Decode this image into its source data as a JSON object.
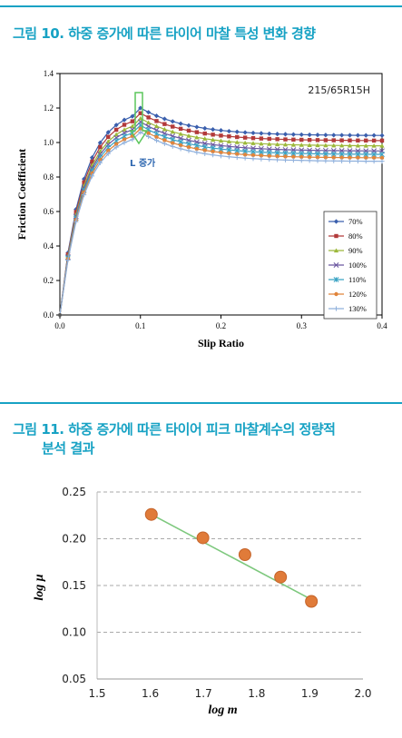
{
  "figure10": {
    "title": "그림 10. 하중 증가에 따른 타이어 마찰 특성 변화 경향"
  },
  "figure11": {
    "title_line1": "그림 11. 하중 증가에 따른 타이어 피크 마찰계수의 정량적",
    "title_line2": "분석 결과"
  },
  "colors": {
    "accent": "#17a2c4",
    "trend_line": "#7dc87d",
    "marker_fill": "#e07b39"
  },
  "chart_data": [
    {
      "type": "line",
      "annotation_tire": "215/65R15H",
      "annotation_arrow": "L 증가",
      "xlabel": "Slip Ratio",
      "ylabel": "Friction Coefficient",
      "xlim": [
        0.0,
        0.4
      ],
      "ylim": [
        0.0,
        1.4
      ],
      "xticks": [
        "0.0",
        "0.1",
        "0.2",
        "0.3",
        "0.4"
      ],
      "yticks": [
        "0.0",
        "0.2",
        "0.4",
        "0.6",
        "0.8",
        "1.0",
        "1.2",
        "1.4"
      ],
      "legend_position": "bottom-right",
      "grid": false,
      "series": [
        {
          "name": "70%",
          "color": "#3a5fad",
          "marker": "diamond",
          "peak": 1.2,
          "end": 1.04
        },
        {
          "name": "80%",
          "color": "#b23a3a",
          "marker": "square",
          "peak": 1.17,
          "end": 1.01
        },
        {
          "name": "90%",
          "color": "#9cb83a",
          "marker": "triangle",
          "peak": 1.14,
          "end": 0.98
        },
        {
          "name": "100%",
          "color": "#6b57a0",
          "marker": "x",
          "peak": 1.12,
          "end": 0.95
        },
        {
          "name": "110%",
          "color": "#3aa3c4",
          "marker": "star",
          "peak": 1.1,
          "end": 0.93
        },
        {
          "name": "120%",
          "color": "#e0843a",
          "marker": "circle",
          "peak": 1.08,
          "end": 0.91
        },
        {
          "name": "130%",
          "color": "#8fb0dc",
          "marker": "plus",
          "peak": 1.06,
          "end": 0.89
        }
      ]
    },
    {
      "type": "scatter",
      "xlabel": "log m",
      "ylabel": "log μ",
      "xlim": [
        1.5,
        2.0
      ],
      "ylim": [
        0.05,
        0.25
      ],
      "xticks": [
        "1.5",
        "1.6",
        "1.7",
        "1.8",
        "1.9",
        "2.0"
      ],
      "yticks": [
        "0.05",
        "0.10",
        "0.15",
        "0.20",
        "0.25"
      ],
      "grid": "horizontal-dashed",
      "points": [
        {
          "x": 1.602,
          "y": 0.226
        },
        {
          "x": 1.699,
          "y": 0.201
        },
        {
          "x": 1.778,
          "y": 0.183
        },
        {
          "x": 1.845,
          "y": 0.159
        },
        {
          "x": 1.903,
          "y": 0.133
        }
      ],
      "trendline": {
        "x": [
          1.602,
          1.903
        ],
        "y": [
          0.226,
          0.135
        ]
      }
    }
  ]
}
